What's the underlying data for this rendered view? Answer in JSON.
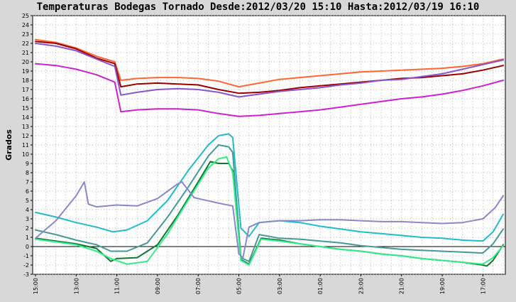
{
  "chart_data": {
    "type": "line",
    "title": "Temperaturas Bodegas Tornado Desde:2012/03/20 15:10 Hasta:2012/03/19 16:10",
    "ylabel": "Grados",
    "xlabel": "",
    "ylim": [
      -3,
      25
    ],
    "yticks": [
      -3,
      -2,
      -1,
      0,
      1,
      2,
      3,
      4,
      5,
      6,
      7,
      8,
      9,
      10,
      11,
      12,
      13,
      14,
      15,
      16,
      17,
      18,
      19,
      20,
      21,
      22,
      23,
      24,
      25
    ],
    "xlim": [
      0,
      23
    ],
    "xticks": [
      {
        "label": "15:00",
        "x": 0
      },
      {
        "label": "13:00",
        "x": 2
      },
      {
        "label": "11:00",
        "x": 4
      },
      {
        "label": "09:00",
        "x": 6
      },
      {
        "label": "07:00",
        "x": 8
      },
      {
        "label": "05:00",
        "x": 10
      },
      {
        "label": "03:00",
        "x": 12
      },
      {
        "label": "01:00",
        "x": 14
      },
      {
        "label": "23:00",
        "x": 16
      },
      {
        "label": "21:00",
        "x": 18
      },
      {
        "label": "19:00",
        "x": 20
      },
      {
        "label": "17:00",
        "x": 22
      }
    ],
    "grid": true,
    "series": [
      {
        "color": "#ff6633",
        "points": [
          [
            0,
            22.4
          ],
          [
            1,
            22.1
          ],
          [
            2,
            21.5
          ],
          [
            3,
            20.6
          ],
          [
            3.9,
            20.0
          ],
          [
            4.2,
            18.0
          ],
          [
            5,
            18.2
          ],
          [
            6,
            18.3
          ],
          [
            7,
            18.3
          ],
          [
            8,
            18.2
          ],
          [
            9,
            17.9
          ],
          [
            10,
            17.3
          ],
          [
            11,
            17.7
          ],
          [
            12,
            18.1
          ],
          [
            13,
            18.3
          ],
          [
            14,
            18.5
          ],
          [
            15,
            18.7
          ],
          [
            16,
            18.9
          ],
          [
            17,
            19.0
          ],
          [
            18,
            19.1
          ],
          [
            19,
            19.2
          ],
          [
            20,
            19.3
          ],
          [
            21,
            19.5
          ],
          [
            22,
            19.8
          ],
          [
            23,
            20.3
          ]
        ]
      },
      {
        "color": "#990000",
        "points": [
          [
            0,
            22.2
          ],
          [
            1,
            22.0
          ],
          [
            2,
            21.4
          ],
          [
            3,
            20.4
          ],
          [
            3.9,
            19.8
          ],
          [
            4.2,
            17.3
          ],
          [
            5,
            17.6
          ],
          [
            6,
            17.7
          ],
          [
            7,
            17.6
          ],
          [
            8,
            17.5
          ],
          [
            9,
            17.0
          ],
          [
            10,
            16.6
          ],
          [
            11,
            16.7
          ],
          [
            12,
            16.9
          ],
          [
            13,
            17.2
          ],
          [
            14,
            17.4
          ],
          [
            15,
            17.6
          ],
          [
            16,
            17.8
          ],
          [
            17,
            18.0
          ],
          [
            18,
            18.2
          ],
          [
            19,
            18.3
          ],
          [
            20,
            18.5
          ],
          [
            21,
            18.7
          ],
          [
            22,
            19.1
          ],
          [
            23,
            19.6
          ]
        ]
      },
      {
        "color": "#8855cc",
        "points": [
          [
            0,
            22.0
          ],
          [
            1,
            21.7
          ],
          [
            2,
            21.2
          ],
          [
            3,
            20.3
          ],
          [
            3.9,
            19.5
          ],
          [
            4.2,
            16.4
          ],
          [
            5,
            16.7
          ],
          [
            6,
            17.0
          ],
          [
            7,
            17.1
          ],
          [
            8,
            17.0
          ],
          [
            9,
            16.7
          ],
          [
            10,
            16.2
          ],
          [
            11,
            16.5
          ],
          [
            12,
            16.8
          ],
          [
            13,
            17.0
          ],
          [
            14,
            17.2
          ],
          [
            15,
            17.5
          ],
          [
            16,
            17.7
          ],
          [
            17,
            18.0
          ],
          [
            18,
            18.1
          ],
          [
            19,
            18.4
          ],
          [
            20,
            18.7
          ],
          [
            21,
            19.2
          ],
          [
            22,
            19.7
          ],
          [
            23,
            20.2
          ]
        ]
      },
      {
        "color": "#cc22cc",
        "points": [
          [
            0,
            19.8
          ],
          [
            1,
            19.6
          ],
          [
            2,
            19.2
          ],
          [
            3,
            18.6
          ],
          [
            3.9,
            17.8
          ],
          [
            4.2,
            14.6
          ],
          [
            5,
            14.8
          ],
          [
            6,
            14.9
          ],
          [
            7,
            14.9
          ],
          [
            8,
            14.8
          ],
          [
            9,
            14.4
          ],
          [
            10,
            14.1
          ],
          [
            11,
            14.2
          ],
          [
            12,
            14.4
          ],
          [
            13,
            14.6
          ],
          [
            14,
            14.8
          ],
          [
            15,
            15.1
          ],
          [
            16,
            15.4
          ],
          [
            17,
            15.7
          ],
          [
            18,
            16.0
          ],
          [
            19,
            16.2
          ],
          [
            20,
            16.5
          ],
          [
            21,
            16.9
          ],
          [
            22,
            17.4
          ],
          [
            23,
            18.0
          ]
        ]
      },
      {
        "color": "#22bbcc",
        "points": [
          [
            0,
            3.7
          ],
          [
            1,
            3.2
          ],
          [
            2,
            2.6
          ],
          [
            3,
            2.1
          ],
          [
            3.8,
            1.6
          ],
          [
            4.5,
            1.8
          ],
          [
            5.5,
            2.8
          ],
          [
            6.5,
            5.0
          ],
          [
            7.5,
            8.2
          ],
          [
            8.5,
            11.0
          ],
          [
            9.0,
            12.0
          ],
          [
            9.5,
            12.2
          ],
          [
            9.7,
            11.8
          ],
          [
            10.1,
            2.0
          ],
          [
            10.5,
            1.1
          ],
          [
            11,
            2.6
          ],
          [
            12,
            2.8
          ],
          [
            13,
            2.6
          ],
          [
            14,
            2.2
          ],
          [
            15,
            1.9
          ],
          [
            16,
            1.6
          ],
          [
            17,
            1.4
          ],
          [
            18,
            1.2
          ],
          [
            19,
            1.0
          ],
          [
            20,
            0.9
          ],
          [
            21,
            0.7
          ],
          [
            22,
            0.6
          ],
          [
            22.5,
            1.6
          ],
          [
            23,
            3.5
          ]
        ]
      },
      {
        "color": "#449999",
        "points": [
          [
            0,
            1.8
          ],
          [
            1,
            1.3
          ],
          [
            2,
            0.7
          ],
          [
            3,
            0.2
          ],
          [
            3.7,
            -0.5
          ],
          [
            4.5,
            -0.5
          ],
          [
            5.5,
            0.4
          ],
          [
            6.5,
            3.2
          ],
          [
            7.5,
            6.4
          ],
          [
            8.5,
            9.8
          ],
          [
            9.0,
            11.0
          ],
          [
            9.5,
            10.8
          ],
          [
            9.7,
            10.2
          ],
          [
            10.1,
            -1.2
          ],
          [
            10.5,
            -1.6
          ],
          [
            11,
            1.3
          ],
          [
            12,
            0.9
          ],
          [
            13,
            0.8
          ],
          [
            14,
            0.6
          ],
          [
            15,
            0.4
          ],
          [
            16,
            0.1
          ],
          [
            17,
            -0.1
          ],
          [
            18,
            -0.3
          ],
          [
            19,
            -0.4
          ],
          [
            20,
            -0.5
          ],
          [
            21,
            -0.6
          ],
          [
            22,
            -0.7
          ],
          [
            22.5,
            0.3
          ],
          [
            23,
            1.9
          ]
        ]
      },
      {
        "color": "#117733",
        "points": [
          [
            0,
            0.9
          ],
          [
            1,
            0.6
          ],
          [
            2,
            0.3
          ],
          [
            3,
            -0.2
          ],
          [
            3.7,
            -1.6
          ],
          [
            4,
            -1.3
          ],
          [
            5,
            -1.2
          ],
          [
            6,
            0.2
          ],
          [
            7,
            3.4
          ],
          [
            8,
            7.0
          ],
          [
            8.6,
            9.2
          ],
          [
            9.0,
            9.0
          ],
          [
            9.5,
            9.0
          ],
          [
            9.7,
            8.2
          ],
          [
            10.1,
            -1.4
          ],
          [
            10.5,
            -1.9
          ],
          [
            11.1,
            0.9
          ],
          [
            12,
            0.7
          ],
          [
            13,
            0.3
          ],
          [
            14,
            0.0
          ],
          [
            15,
            -0.3
          ],
          [
            16,
            -0.5
          ],
          [
            17,
            -0.8
          ],
          [
            18,
            -1.0
          ],
          [
            19,
            -1.3
          ],
          [
            20,
            -1.5
          ],
          [
            21,
            -1.7
          ],
          [
            22,
            -2.0
          ],
          [
            22.2,
            -2.1
          ],
          [
            22.5,
            -1.5
          ],
          [
            23,
            0.2
          ]
        ]
      },
      {
        "color": "#33ee88",
        "points": [
          [
            0,
            0.8
          ],
          [
            1,
            0.5
          ],
          [
            2,
            0.2
          ],
          [
            3,
            -0.5
          ],
          [
            3.7,
            -1.3
          ],
          [
            4.5,
            -1.9
          ],
          [
            5.5,
            -1.6
          ],
          [
            6.5,
            1.4
          ],
          [
            7.5,
            5.0
          ],
          [
            8.5,
            8.5
          ],
          [
            9.0,
            9.5
          ],
          [
            9.4,
            9.7
          ],
          [
            9.7,
            8.0
          ],
          [
            10.1,
            -1.5
          ],
          [
            10.5,
            -2.0
          ],
          [
            11.1,
            0.8
          ],
          [
            12,
            0.6
          ],
          [
            13,
            0.3
          ],
          [
            14,
            0.0
          ],
          [
            15,
            -0.3
          ],
          [
            16,
            -0.5
          ],
          [
            17,
            -0.8
          ],
          [
            18,
            -1.0
          ],
          [
            19,
            -1.3
          ],
          [
            20,
            -1.5
          ],
          [
            21,
            -1.7
          ],
          [
            22,
            -1.9
          ],
          [
            22.5,
            -1.2
          ],
          [
            23,
            0.1
          ]
        ]
      },
      {
        "color": "#8888cc",
        "points": [
          [
            0,
            0.9
          ],
          [
            1,
            2.8
          ],
          [
            2,
            5.5
          ],
          [
            2.4,
            7.0
          ],
          [
            2.6,
            4.6
          ],
          [
            3,
            4.3
          ],
          [
            4,
            4.5
          ],
          [
            5,
            4.4
          ],
          [
            6,
            5.2
          ],
          [
            7,
            6.8
          ],
          [
            7.2,
            7.0
          ],
          [
            7.8,
            5.3
          ],
          [
            8.2,
            5.1
          ],
          [
            9,
            4.7
          ],
          [
            9.7,
            4.4
          ],
          [
            10.0,
            -0.8
          ],
          [
            10.2,
            -1.2
          ],
          [
            10.5,
            2.1
          ],
          [
            11,
            2.6
          ],
          [
            12,
            2.8
          ],
          [
            13,
            2.8
          ],
          [
            14,
            2.9
          ],
          [
            15,
            2.9
          ],
          [
            16,
            2.8
          ],
          [
            17,
            2.7
          ],
          [
            18,
            2.7
          ],
          [
            19,
            2.6
          ],
          [
            20,
            2.5
          ],
          [
            21,
            2.6
          ],
          [
            22,
            3.0
          ],
          [
            22.6,
            4.2
          ],
          [
            23,
            5.5
          ]
        ]
      }
    ]
  }
}
